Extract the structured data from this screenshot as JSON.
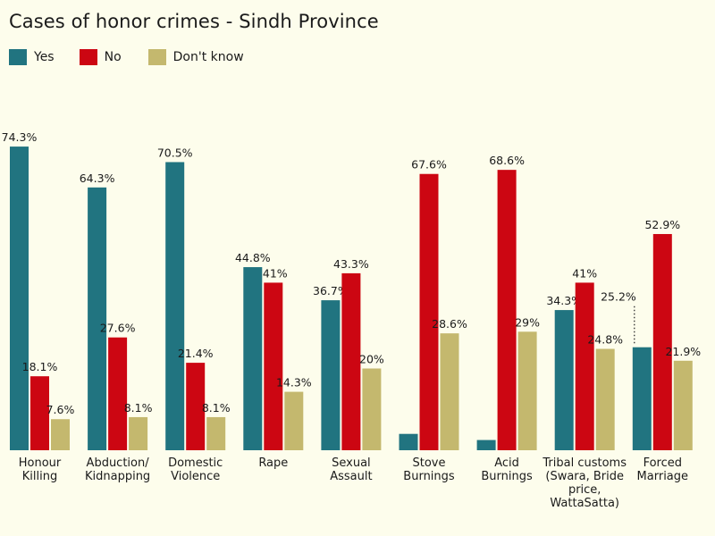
{
  "title": "Cases of honor crimes - Sindh Province",
  "chart_data": {
    "type": "bar",
    "title": "Cases of honor crimes - Sindh Province",
    "legend_position": "top-left",
    "grid": false,
    "categories": [
      [
        "Honour",
        "Killing"
      ],
      [
        "Abduction/",
        "Kidnapping"
      ],
      [
        "Domestic",
        "Violence"
      ],
      [
        "Rape"
      ],
      [
        "Sexual",
        "Assault"
      ],
      [
        "Stove",
        "Burnings"
      ],
      [
        "Acid",
        "Burnings"
      ],
      [
        "Tribal customs",
        "(Swara, Bride",
        "price,",
        "WattaSatta)"
      ],
      [
        "Forced",
        "Marriage"
      ]
    ],
    "series": [
      {
        "name": "Yes",
        "color": "#217480",
        "values": [
          74.3,
          64.3,
          70.5,
          44.8,
          36.7,
          4,
          2.5,
          34.3,
          25.2
        ],
        "labels": [
          "74.3%",
          "64.3%",
          "70.5%",
          "44.8%",
          "36.7%",
          "",
          "",
          "34.3%",
          "25.2%"
        ]
      },
      {
        "name": "No",
        "color": "#cc0612",
        "values": [
          18.1,
          27.6,
          21.4,
          41,
          43.3,
          67.6,
          68.6,
          41,
          52.9
        ],
        "labels": [
          "18.1%",
          "27.6%",
          "21.4%",
          "41%",
          "43.3%",
          "67.6%",
          "68.6%",
          "41%",
          "52.9%"
        ]
      },
      {
        "name": "Don't know",
        "color": "#c4b86e",
        "values": [
          7.6,
          8.1,
          8.1,
          14.3,
          20,
          28.6,
          29,
          24.8,
          21.9
        ],
        "labels": [
          "7.6%",
          "8.1%",
          "8.1%",
          "14.3%",
          "20%",
          "28.6%",
          "29%",
          "24.8%",
          "21.9%"
        ]
      }
    ],
    "ylim": [
      0,
      80
    ],
    "xlabel": "",
    "ylabel": ""
  }
}
